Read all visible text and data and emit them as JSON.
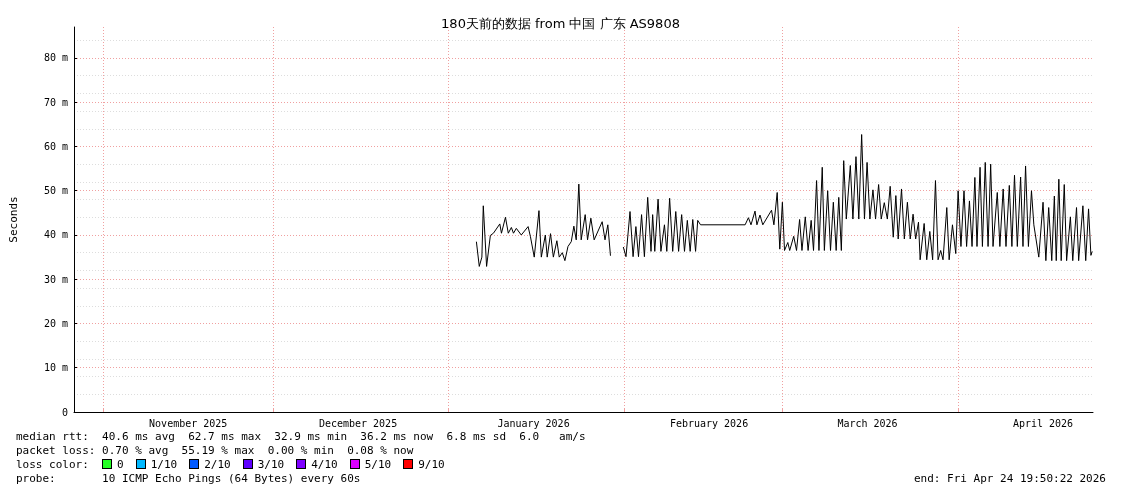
{
  "chart_data": {
    "type": "line",
    "title": "180天前的数据 from 中国 广东 AS9808",
    "ylabel": "Seconds",
    "color": "#000000",
    "xlim": [
      "2025-10-26T19:50",
      "2026-04-24T19:50"
    ],
    "xticks": [
      {
        "value": "2025-11-01",
        "label": null
      },
      {
        "value": "2025-11-16",
        "label": "November 2025"
      },
      {
        "value": "2025-12-01",
        "label": null
      },
      {
        "value": "2025-12-16",
        "label": "December 2025"
      },
      {
        "value": "2026-01-01",
        "label": null
      },
      {
        "value": "2026-01-16",
        "label": "January 2026"
      },
      {
        "value": "2026-02-01",
        "label": null
      },
      {
        "value": "2026-02-16",
        "label": "February 2026"
      },
      {
        "value": "2026-03-01",
        "label": null
      },
      {
        "value": "2026-03-16",
        "label": "March 2026"
      },
      {
        "value": "2026-04-01",
        "label": null
      },
      {
        "value": "2026-04-16",
        "label": "April 2026"
      }
    ],
    "ylim": [
      0,
      87
    ],
    "yticks": [
      0,
      {
        "value": 10,
        "label": "10 m"
      },
      {
        "value": 20,
        "label": "20 m"
      },
      {
        "value": 30,
        "label": "30 m"
      },
      {
        "value": 40,
        "label": "40 m"
      },
      {
        "value": 50,
        "label": "50 m"
      },
      {
        "value": 60,
        "label": "60 m"
      },
      {
        "value": 70,
        "label": "70 m"
      },
      {
        "value": 80,
        "label": "80 m"
      }
    ],
    "grid": true,
    "marker": "none",
    "line_style": "solid",
    "x": [
      "2026-01-05T22:00",
      "2026-01-06T10:00",
      "2026-01-06T21:00",
      "2026-01-07T03:00",
      "2026-01-07T17:00",
      "2026-01-08T09:00",
      "2026-01-08T22:00",
      "2026-01-10T01:00",
      "2026-01-10T08:00",
      "2026-01-11T01:00",
      "2026-01-11T13:00",
      "2026-01-12T02:00",
      "2026-01-12T11:00",
      "2026-01-12T23:00",
      "2026-01-13T20:00",
      "2026-01-15T01:00",
      "2026-01-15T11:00",
      "2026-01-16T03:00",
      "2026-01-16T23:00",
      "2026-01-17T09:00",
      "2026-01-18T02:00",
      "2026-01-18T10:00",
      "2026-01-19T00:00",
      "2026-01-19T12:00",
      "2026-01-20T03:00",
      "2026-01-20T13:00",
      "2026-01-21T02:00",
      "2026-01-21T13:00",
      "2026-01-22T02:00",
      "2026-01-22T16:00",
      "2026-01-23T03:00",
      "2026-01-23T13:00",
      "2026-01-24T00:00",
      "2026-01-24T10:00",
      "2026-01-25T03:00",
      "2026-01-25T13:00",
      "2026-01-26T03:00",
      "2026-01-26T17:00",
      "2026-01-28T03:00",
      "2026-01-28T15:00",
      "2026-01-29T03:00",
      "2026-01-29T14:00",
      "2026-01-30T12:00",
      "2026-01-31T21:00",
      "2026-02-01T08:00",
      "2026-02-02T01:00",
      "2026-02-02T14:00",
      "2026-02-03T02:00",
      "2026-02-03T13:00",
      "2026-02-04T02:00",
      "2026-02-04T14:00",
      "2026-02-05T04:00",
      "2026-02-05T18:00",
      "2026-02-06T01:00",
      "2026-02-06T10:00",
      "2026-02-07T00:00",
      "2026-02-07T12:00",
      "2026-02-08T03:00",
      "2026-02-08T13:00",
      "2026-02-09T01:00",
      "2026-02-09T14:00",
      "2026-02-10T03:00",
      "2026-02-10T15:00",
      "2026-02-11T04:00",
      "2026-02-11T16:00",
      "2026-02-12T04:00",
      "2026-02-12T16:00",
      "2026-02-13T03:00",
      "2026-02-13T15:00",
      "2026-02-14T00:00",
      "2026-02-14T12:00",
      "2026-02-22T09:00",
      "2026-02-22T23:00",
      "2026-02-23T10:00",
      "2026-02-24T03:00",
      "2026-02-24T11:00",
      "2026-02-25T00:00",
      "2026-02-25T12:00",
      "2026-02-27T01:00",
      "2026-02-27T11:00",
      "2026-02-28T01:00",
      "2026-02-28T12:00",
      "2026-02-28T23:00",
      "2026-03-01T08:00",
      "2026-03-01T22:00",
      "2026-03-02T06:00",
      "2026-03-02T23:00",
      "2026-03-03T11:00",
      "2026-03-04T00:00",
      "2026-03-04T10:00",
      "2026-03-05T00:00",
      "2026-03-05T12:00",
      "2026-03-06T01:00",
      "2026-03-06T11:00",
      "2026-03-07T00:00",
      "2026-03-07T10:00",
      "2026-03-08T00:00",
      "2026-03-08T09:00",
      "2026-03-08T23:00",
      "2026-03-09T11:00",
      "2026-03-09T23:00",
      "2026-03-10T11:00",
      "2026-03-10T22:00",
      "2026-03-11T09:00",
      "2026-03-11T19:00",
      "2026-03-12T06:00",
      "2026-03-12T23:00",
      "2026-03-13T10:00",
      "2026-03-13T23:00",
      "2026-03-14T11:00",
      "2026-03-14T23:00",
      "2026-03-15T11:00",
      "2026-03-15T22:00",
      "2026-03-16T10:00",
      "2026-03-16T23:00",
      "2026-03-17T10:00",
      "2026-03-17T23:00",
      "2026-03-18T10:00",
      "2026-03-18T23:00",
      "2026-03-19T12:00",
      "2026-03-20T00:00",
      "2026-03-20T13:00",
      "2026-03-21T00:00",
      "2026-03-21T10:00",
      "2026-03-22T00:00",
      "2026-03-22T12:00",
      "2026-03-23T01:00",
      "2026-03-23T13:00",
      "2026-03-24T01:00",
      "2026-03-24T12:00",
      "2026-03-25T00:00",
      "2026-03-25T07:00",
      "2026-03-26T00:00",
      "2026-03-26T11:00",
      "2026-03-27T00:00",
      "2026-03-27T12:00",
      "2026-03-28T00:00",
      "2026-03-28T11:00",
      "2026-03-28T22:00",
      "2026-03-29T08:00",
      "2026-03-30T00:00",
      "2026-03-30T10:00",
      "2026-03-31T00:00",
      "2026-03-31T14:00",
      "2026-04-01T00:00",
      "2026-04-01T12:00",
      "2026-04-02T01:00",
      "2026-04-02T12:00",
      "2026-04-03T00:00",
      "2026-04-03T11:00",
      "2026-04-03T23:00",
      "2026-04-04T08:00",
      "2026-04-04T21:00",
      "2026-04-05T07:00",
      "2026-04-05T19:00",
      "2026-04-06T07:00",
      "2026-04-06T18:00",
      "2026-04-07T04:00",
      "2026-04-07T22:00",
      "2026-04-08T09:00",
      "2026-04-08T23:00",
      "2026-04-09T11:00",
      "2026-04-10T01:00",
      "2026-04-10T12:00",
      "2026-04-10T23:00",
      "2026-04-11T11:00",
      "2026-04-12T01:00",
      "2026-04-12T11:00",
      "2026-04-12T22:00",
      "2026-04-13T10:00",
      "2026-04-13T23:00",
      "2026-04-14T09:00",
      "2026-04-15T06:00",
      "2026-04-16T00:00",
      "2026-04-16T12:00",
      "2026-04-17T00:00",
      "2026-04-17T13:00",
      "2026-04-18T00:00",
      "2026-04-18T08:00",
      "2026-04-18T19:00",
      "2026-04-19T05:00",
      "2026-04-19T18:00",
      "2026-04-20T04:00",
      "2026-04-20T20:00",
      "2026-04-21T06:00",
      "2026-04-21T22:00",
      "2026-04-22T07:00",
      "2026-04-23T01:00",
      "2026-04-23T13:00",
      "2026-04-24T01:00",
      "2026-04-24T11:00",
      "2026-04-24T16:00"
    ],
    "values": [
      38.4,
      32.9,
      35.0,
      46.6,
      32.9,
      39.9,
      40.4,
      42.5,
      40.4,
      44.0,
      40.4,
      41.7,
      40.4,
      41.5,
      40.0,
      41.9,
      39.6,
      35.0,
      45.5,
      35.0,
      40.0,
      35.0,
      40.3,
      35.0,
      38.7,
      35.0,
      36.0,
      34.2,
      37.4,
      38.5,
      42.0,
      38.9,
      51.5,
      38.9,
      44.6,
      38.9,
      43.8,
      38.9,
      43.0,
      38.9,
      42.3,
      35.4,
      null,
      37.2,
      35.1,
      45.3,
      35.1,
      41.9,
      35.1,
      44.6,
      35.1,
      48.5,
      36.3,
      44.6,
      36.3,
      48.1,
      36.3,
      42.3,
      36.3,
      48.3,
      36.3,
      45.3,
      36.3,
      44.6,
      36.3,
      43.3,
      36.3,
      43.5,
      36.3,
      43.3,
      42.3,
      42.3,
      43.9,
      42.3,
      45.4,
      42.3,
      44.5,
      42.3,
      45.6,
      42.3,
      49.6,
      36.8,
      47.4,
      36.5,
      38.3,
      36.5,
      39.7,
      36.5,
      43.5,
      36.5,
      44.1,
      36.5,
      43.3,
      36.5,
      52.3,
      36.5,
      55.3,
      36.5,
      50.0,
      36.5,
      47.4,
      36.5,
      48.5,
      36.5,
      56.8,
      43.6,
      55.7,
      43.6,
      57.7,
      43.6,
      62.7,
      43.6,
      56.4,
      43.6,
      50.2,
      43.6,
      51.4,
      43.6,
      47.3,
      43.6,
      51.0,
      39.5,
      48.9,
      39.1,
      50.4,
      39.1,
      47.4,
      39.1,
      44.7,
      39.1,
      42.9,
      34.4,
      42.6,
      34.4,
      40.8,
      34.4,
      52.3,
      34.4,
      36.5,
      34.4,
      46.2,
      34.4,
      42.3,
      35.8,
      50.0,
      37.4,
      50.0,
      37.4,
      47.7,
      37.4,
      53.0,
      37.4,
      55.3,
      37.4,
      56.4,
      37.4,
      56.0,
      37.4,
      49.6,
      37.4,
      50.4,
      37.4,
      51.2,
      37.4,
      53.5,
      37.4,
      53.1,
      37.4,
      55.6,
      37.4,
      50.0,
      42.3,
      35.0,
      47.4,
      34.2,
      46.2,
      34.2,
      48.8,
      34.2,
      52.6,
      34.2,
      51.4,
      34.2,
      44.1,
      34.2,
      46.2,
      34.2,
      46.6,
      34.2,
      45.9,
      35.4,
      36.2
    ],
    "annotations": [
      "median rtt:  40.6 ms avg  62.7 ms max  32.9 ms min  36.2 ms now  6.8 ms sd  6.0   am/s",
      "packet loss: 0.70 % avg  55.19 % max  0.00 % min  0.08 % now",
      "loss color:  0  1/10  2/10  3/10  4/10  5/10  9/10",
      "probe:       10 ICMP Echo Pings (64 Bytes) every 60s",
      "end: Fri Apr 24 19:50:22 2026"
    ]
  }
}
